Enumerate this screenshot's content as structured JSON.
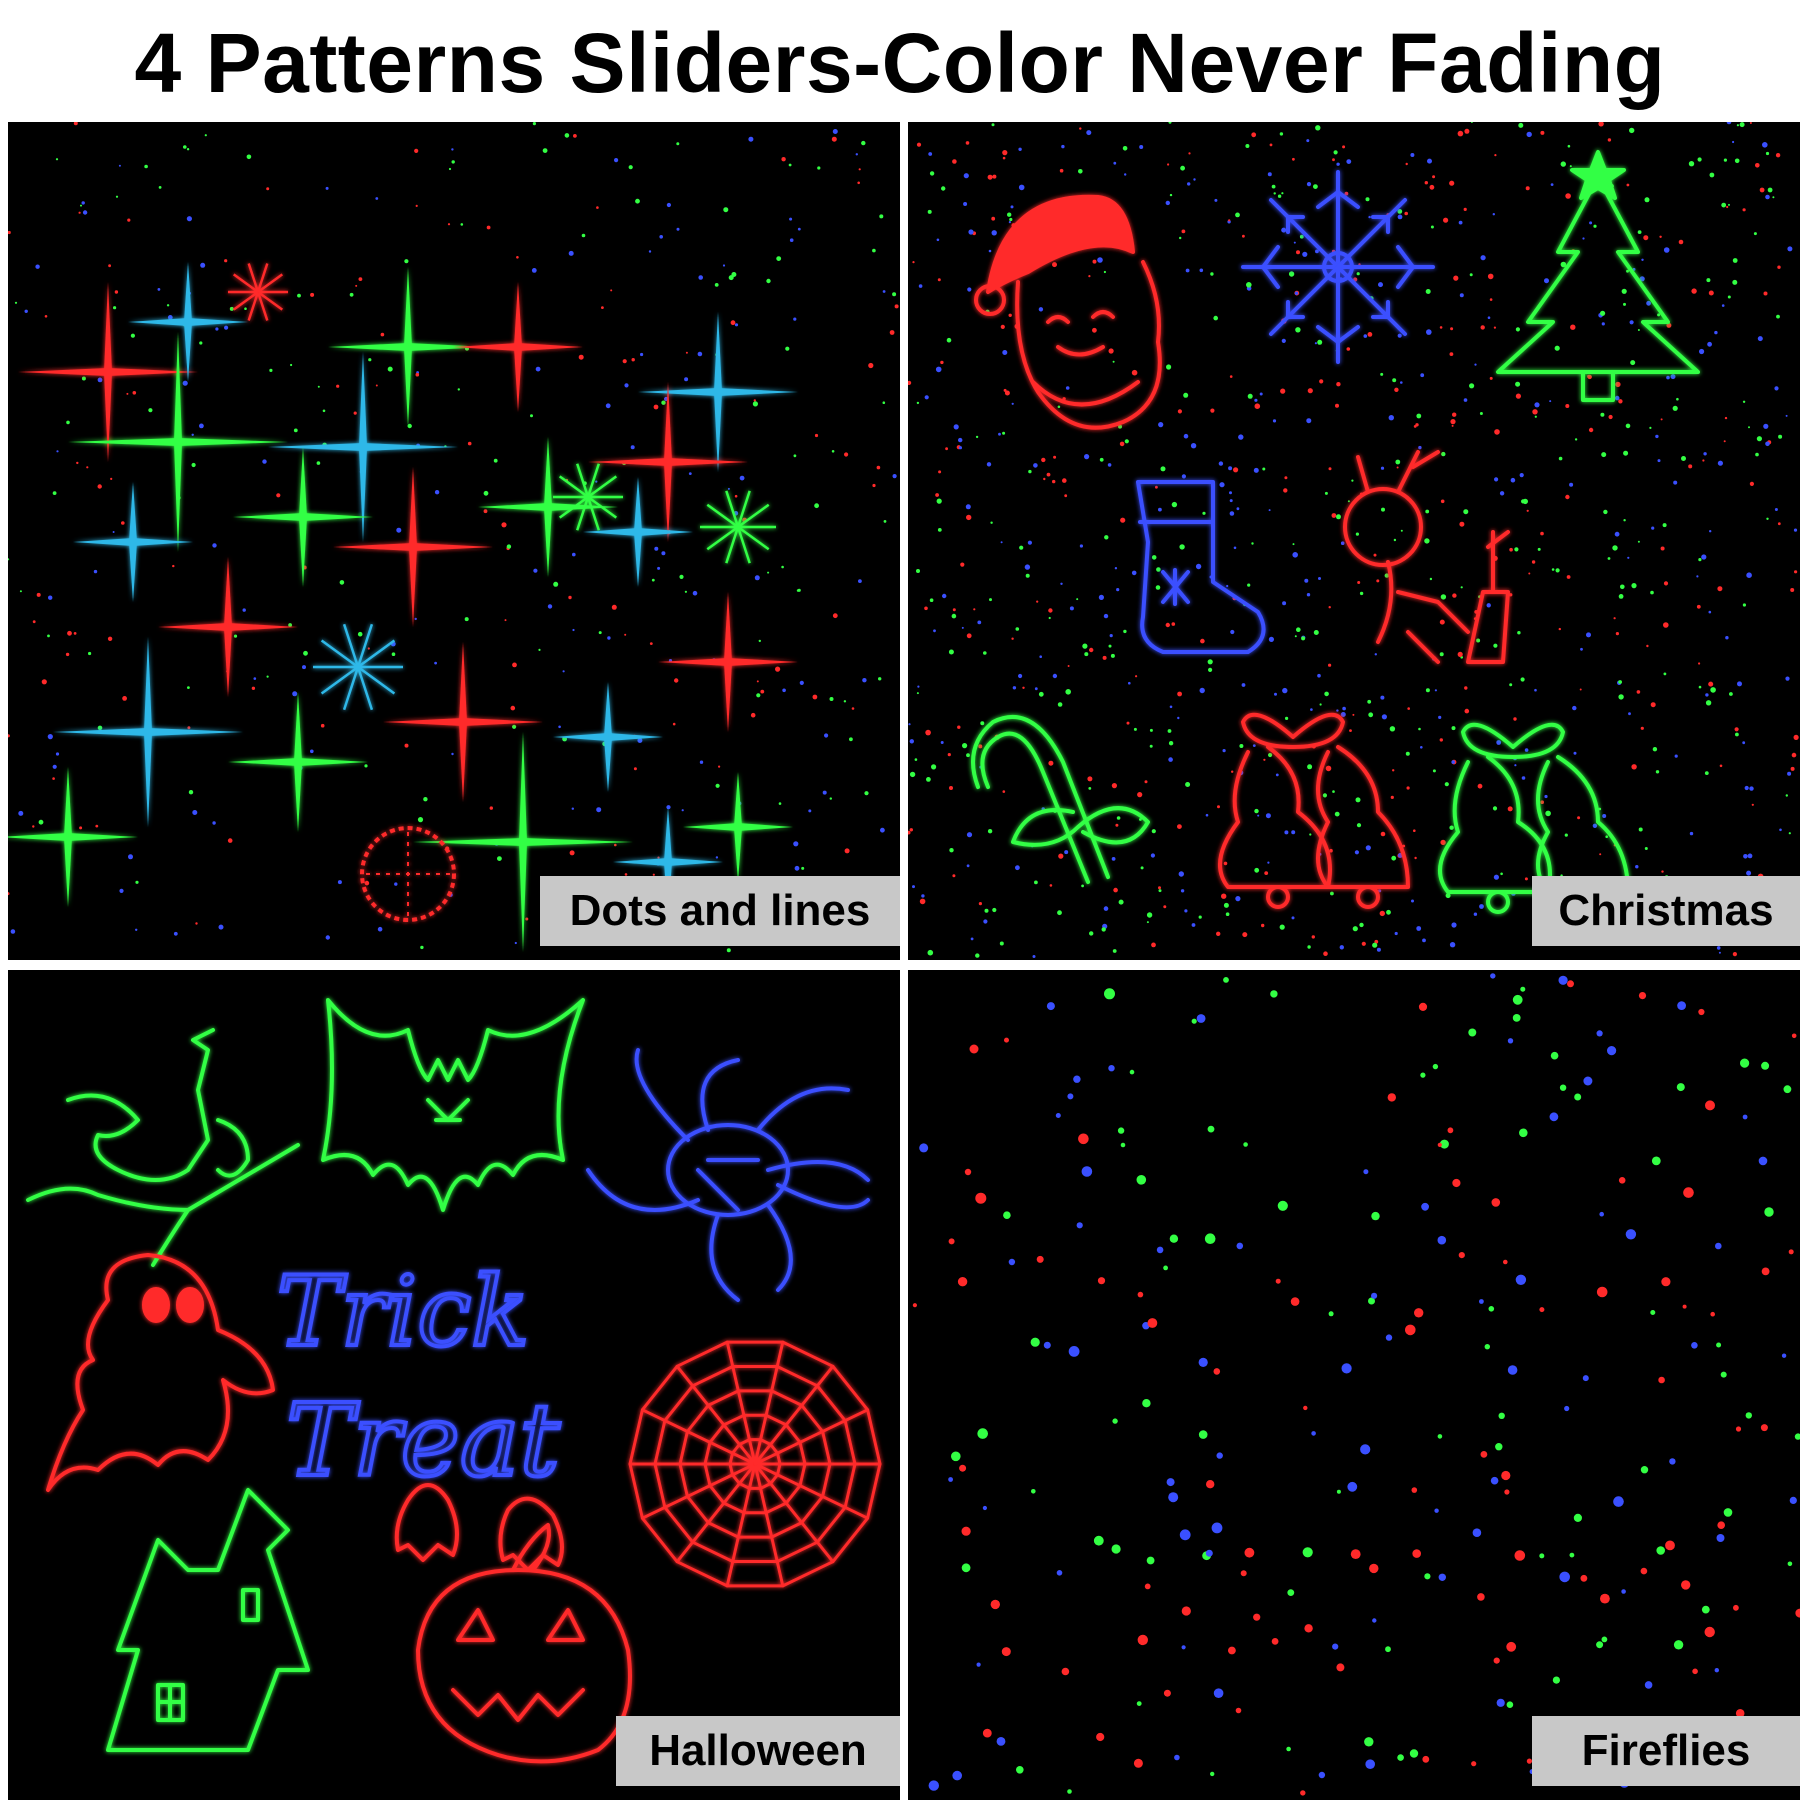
{
  "title": "4 Patterns Sliders-Color Never Fading",
  "panels": {
    "dots": {
      "label": "Dots and lines"
    },
    "christmas": {
      "label": "Christmas"
    },
    "halloween": {
      "label": "Halloween",
      "sign_line1": "Trick",
      "sign_line2": "Treat"
    },
    "fireflies": {
      "label": "Fireflies"
    }
  },
  "colors": {
    "red": "#ff2a2a",
    "green": "#33ff44",
    "blue": "#3a50ff",
    "cyan": "#2fb8e8",
    "background": "#000000",
    "label_bg": "#c8c8c8"
  }
}
